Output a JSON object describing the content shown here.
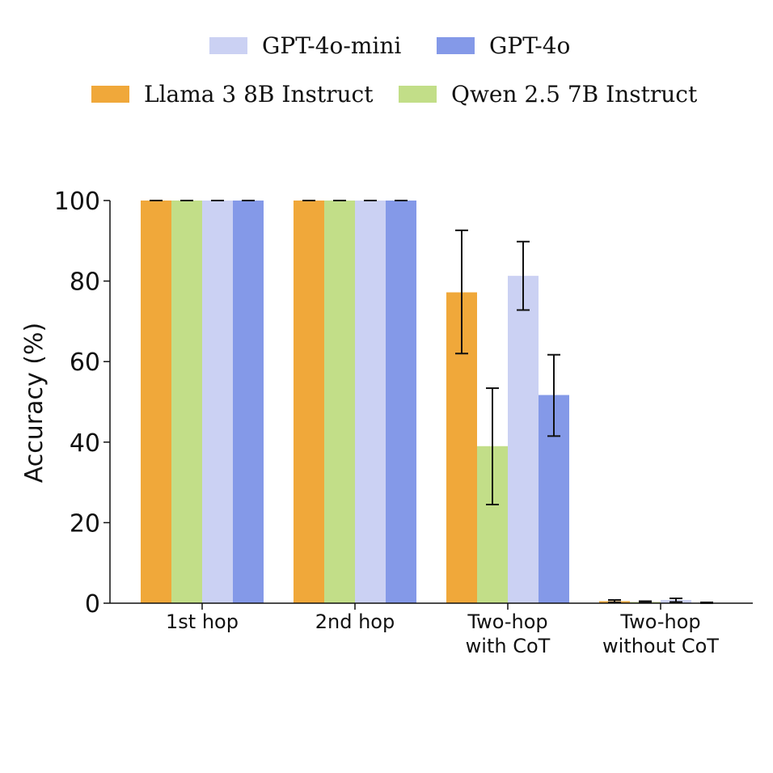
{
  "chart_data": {
    "type": "bar",
    "title": "",
    "xlabel": "",
    "ylabel": "Accuracy (%)",
    "ylim": [
      0,
      100
    ],
    "yticks": [
      0,
      20,
      40,
      60,
      80,
      100
    ],
    "grid": false,
    "legend_position": "top",
    "categories": [
      [
        "1st hop"
      ],
      [
        "2nd hop"
      ],
      [
        "Two-hop",
        "with CoT"
      ],
      [
        "Two-hop",
        "without CoT"
      ]
    ],
    "series": [
      {
        "name": "Llama 3 8B Instruct",
        "color": "#f0a83a",
        "values": [
          100,
          100,
          77.2,
          0.5
        ],
        "err_low": [
          100,
          100,
          62,
          0.2
        ],
        "err_high": [
          100,
          100,
          92.6,
          0.8
        ]
      },
      {
        "name": "Qwen 2.5 7B Instruct",
        "color": "#c2de88",
        "values": [
          100,
          100,
          39,
          0.3
        ],
        "err_low": [
          100,
          100,
          24.5,
          0.1
        ],
        "err_high": [
          100,
          100,
          53.4,
          0.5
        ]
      },
      {
        "name": "GPT-4o-mini",
        "color": "#cbd1f3",
        "values": [
          100,
          100,
          81.3,
          0.8
        ],
        "err_low": [
          100,
          100,
          72.8,
          0.3
        ],
        "err_high": [
          100,
          100,
          89.8,
          1.2
        ]
      },
      {
        "name": "GPT-4o",
        "color": "#8499e8",
        "values": [
          100,
          100,
          51.7,
          0.1
        ],
        "err_low": [
          100,
          100,
          41.5,
          0
        ],
        "err_high": [
          100,
          100,
          61.7,
          0.2
        ]
      }
    ],
    "legend_rows": [
      [
        "GPT-4o-mini",
        "GPT-4o"
      ],
      [
        "Llama 3 8B Instruct",
        "Qwen 2.5 7B Instruct"
      ]
    ]
  }
}
